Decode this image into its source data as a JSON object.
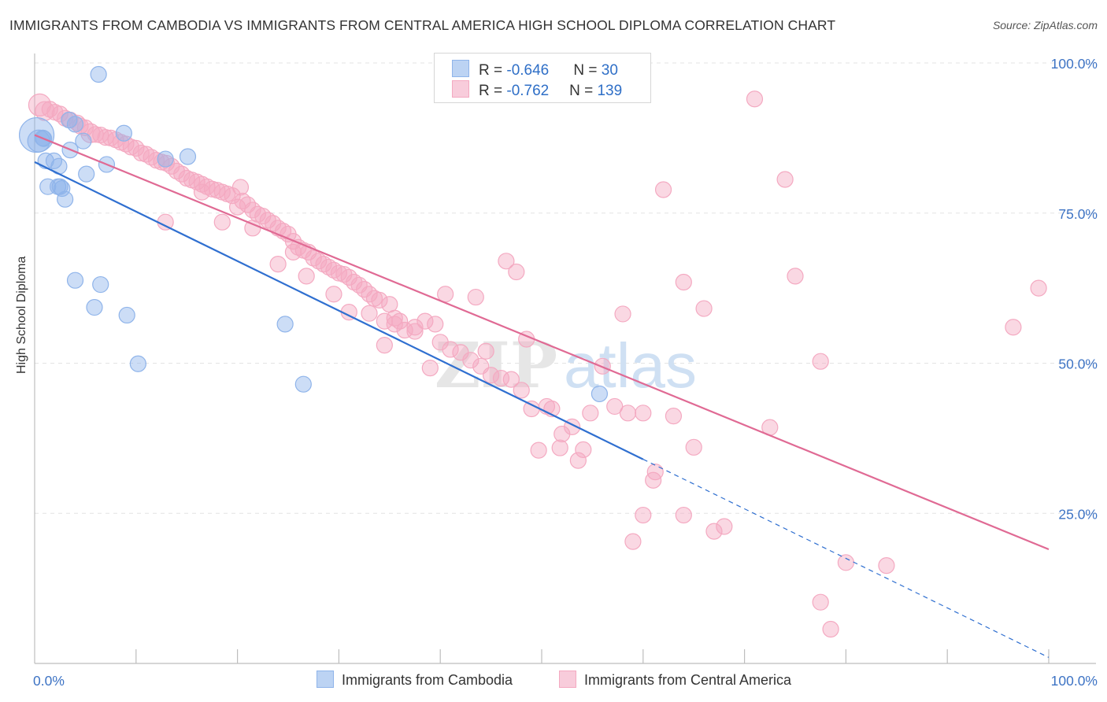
{
  "chart_data": {
    "type": "scatter",
    "title": "IMMIGRANTS FROM CAMBODIA VS IMMIGRANTS FROM CENTRAL AMERICA HIGH SCHOOL DIPLOMA CORRELATION CHART",
    "source": "Source: ZipAtlas.com",
    "xlabel": "",
    "ylabel": "High School Diploma",
    "xlim": [
      0,
      100
    ],
    "ylim": [
      0,
      100
    ],
    "x_tick_labels": [
      "0.0%",
      "100.0%"
    ],
    "y_tick_labels": [
      {
        "value": 100,
        "label": "100.0%"
      },
      {
        "value": 75,
        "label": "75.0%"
      },
      {
        "value": 50,
        "label": "50.0%"
      },
      {
        "value": 25,
        "label": "25.0%"
      }
    ],
    "watermark": {
      "zip": "ZIP",
      "atlas": "atlas"
    },
    "series": [
      {
        "name": "Immigrants from Cambodia",
        "color": "#8fb4ea",
        "line_color": "#2f6fd0",
        "r": "-0.646",
        "n": "30",
        "trend": {
          "x0": 0,
          "y0": 83.5,
          "x1": 60,
          "y1": 34,
          "dash_to_x": 100,
          "dash_to_y": 1
        },
        "points": [
          [
            0.2,
            88,
            22
          ],
          [
            0.4,
            87,
            14
          ],
          [
            0.8,
            87.5,
            10
          ],
          [
            1.1,
            83.7,
            10
          ],
          [
            1.9,
            83.7,
            10
          ],
          [
            2.4,
            82.8,
            10
          ],
          [
            3.5,
            85.5,
            10
          ],
          [
            3.4,
            90.5,
            10
          ],
          [
            4,
            89.8,
            10
          ],
          [
            4.8,
            87,
            10
          ],
          [
            1.3,
            79.4,
            10
          ],
          [
            2.3,
            79.4,
            10
          ],
          [
            2.7,
            79.1,
            10
          ],
          [
            3,
            77.3,
            10
          ],
          [
            5.1,
            81.5,
            10
          ],
          [
            7.1,
            83.1,
            10
          ],
          [
            6.3,
            98.1,
            10
          ],
          [
            8.8,
            88.3,
            10
          ],
          [
            12.9,
            84,
            10
          ],
          [
            15.1,
            84.4,
            10
          ],
          [
            4,
            63.8,
            10
          ],
          [
            6.5,
            63.1,
            10
          ],
          [
            5.9,
            59.3,
            10
          ],
          [
            9.1,
            58,
            10
          ],
          [
            10.2,
            49.9,
            10
          ],
          [
            24.7,
            56.5,
            10
          ],
          [
            26.5,
            46.5,
            10
          ],
          [
            55.7,
            44.9,
            10
          ],
          [
            0.9,
            87.4,
            10
          ],
          [
            2.5,
            79.4,
            10
          ]
        ]
      },
      {
        "name": "Immigrants from Central America",
        "color": "#f4a9c1",
        "line_color": "#e06a94",
        "r": "-0.762",
        "n": "139",
        "trend": {
          "x0": 0,
          "y0": 88,
          "x1": 100,
          "y1": 19
        },
        "points": [
          [
            0.5,
            93,
            14
          ],
          [
            1,
            92,
            12
          ],
          [
            1.5,
            92.3,
            10
          ],
          [
            2,
            91.8,
            10
          ],
          [
            2.5,
            91.5,
            10
          ],
          [
            3,
            90.8,
            10
          ],
          [
            3.5,
            90.5,
            10
          ],
          [
            4.2,
            90,
            10
          ],
          [
            4.5,
            89.5,
            10
          ],
          [
            5,
            89.2,
            10
          ],
          [
            5.5,
            88.3,
            12
          ],
          [
            6,
            88.1,
            10
          ],
          [
            6.5,
            88,
            10
          ],
          [
            7,
            87.6,
            10
          ],
          [
            7.5,
            87.5,
            10
          ],
          [
            8,
            87.2,
            10
          ],
          [
            8.5,
            86.8,
            10
          ],
          [
            9,
            86.5,
            10
          ],
          [
            9.5,
            86,
            10
          ],
          [
            10,
            85.8,
            10
          ],
          [
            10.5,
            85,
            10
          ],
          [
            11,
            84.8,
            10
          ],
          [
            11.5,
            84.3,
            10
          ],
          [
            12,
            83.8,
            10
          ],
          [
            12.5,
            83.5,
            10
          ],
          [
            13,
            83.3,
            10
          ],
          [
            13.5,
            82.8,
            10
          ],
          [
            14,
            82,
            10
          ],
          [
            14.5,
            81.5,
            10
          ],
          [
            15,
            80.8,
            10
          ],
          [
            15.5,
            80.5,
            10
          ],
          [
            16,
            80.2,
            10
          ],
          [
            16.5,
            79.8,
            10
          ],
          [
            17,
            79.4,
            10
          ],
          [
            17.5,
            79,
            10
          ],
          [
            18,
            78.8,
            10
          ],
          [
            18.5,
            78.5,
            10
          ],
          [
            19,
            78.2,
            10
          ],
          [
            19.5,
            77.9,
            10
          ],
          [
            20.3,
            79.3,
            10
          ],
          [
            20.5,
            77,
            10
          ],
          [
            21,
            76.4,
            10
          ],
          [
            21.5,
            75.5,
            10
          ],
          [
            22,
            74.8,
            10
          ],
          [
            22.5,
            74.5,
            10
          ],
          [
            23,
            73.8,
            10
          ],
          [
            23.5,
            73.3,
            10
          ],
          [
            24,
            72.5,
            10
          ],
          [
            24.5,
            72,
            10
          ],
          [
            25,
            71.5,
            10
          ],
          [
            25.5,
            70.3,
            10
          ],
          [
            26,
            69.3,
            10
          ],
          [
            26.5,
            68.8,
            10
          ],
          [
            27,
            68.5,
            10
          ],
          [
            27.5,
            67.5,
            10
          ],
          [
            28,
            67,
            10
          ],
          [
            28.5,
            66.5,
            10
          ],
          [
            29,
            66,
            10
          ],
          [
            29.5,
            65.5,
            10
          ],
          [
            30,
            65,
            10
          ],
          [
            30.5,
            64.8,
            10
          ],
          [
            31,
            64.3,
            10
          ],
          [
            31.5,
            63.5,
            10
          ],
          [
            32,
            63,
            10
          ],
          [
            32.5,
            62.3,
            10
          ],
          [
            33,
            61.5,
            10
          ],
          [
            33.5,
            60.8,
            10
          ],
          [
            34,
            60.5,
            10
          ],
          [
            35,
            59.8,
            10
          ],
          [
            12.9,
            73.5,
            10
          ],
          [
            16.5,
            78.5,
            10
          ],
          [
            18.5,
            73.5,
            10
          ],
          [
            20,
            76,
            10
          ],
          [
            21.5,
            72.5,
            10
          ],
          [
            24,
            66.5,
            10
          ],
          [
            25.5,
            68.5,
            10
          ],
          [
            26.8,
            64.5,
            10
          ],
          [
            29.5,
            61.5,
            10
          ],
          [
            31,
            58.5,
            10
          ],
          [
            33,
            58.3,
            10
          ],
          [
            34.5,
            57,
            10
          ],
          [
            35.5,
            56.5,
            10
          ],
          [
            36.5,
            55.5,
            10
          ],
          [
            37.5,
            55.3,
            10
          ],
          [
            38.5,
            57,
            10
          ],
          [
            39.5,
            56.5,
            10
          ],
          [
            40,
            53.5,
            10
          ],
          [
            41,
            52.3,
            10
          ],
          [
            42,
            51.8,
            10
          ],
          [
            43,
            50.5,
            10
          ],
          [
            44,
            49.5,
            10
          ],
          [
            45,
            48,
            10
          ],
          [
            46,
            47.5,
            10
          ],
          [
            47,
            47.3,
            10
          ],
          [
            48,
            45.5,
            10
          ],
          [
            34.5,
            53,
            10
          ],
          [
            35.5,
            57.5,
            10
          ],
          [
            36,
            57,
            10
          ],
          [
            37.5,
            56,
            10
          ],
          [
            39,
            49.2,
            10
          ],
          [
            40.5,
            61.5,
            10
          ],
          [
            43.5,
            61,
            10
          ],
          [
            44.5,
            52,
            10
          ],
          [
            46.5,
            67,
            10
          ],
          [
            47.5,
            65.2,
            10
          ],
          [
            48.5,
            54,
            10
          ],
          [
            49,
            42.4,
            10
          ],
          [
            50.5,
            42.8,
            10
          ],
          [
            51,
            42.4,
            10
          ],
          [
            52,
            38.2,
            10
          ],
          [
            49.7,
            35.5,
            10
          ],
          [
            51.8,
            35.9,
            10
          ],
          [
            53,
            39.4,
            10
          ],
          [
            53.6,
            33.8,
            10
          ],
          [
            54.1,
            35.6,
            10
          ],
          [
            54.8,
            41.7,
            10
          ],
          [
            56,
            49.5,
            10
          ],
          [
            57.2,
            42.8,
            10
          ],
          [
            58,
            58.2,
            10
          ],
          [
            58.5,
            41.7,
            10
          ],
          [
            60,
            41.7,
            10
          ],
          [
            61,
            30.5,
            10
          ],
          [
            62,
            78.9,
            10
          ],
          [
            63,
            41.2,
            10
          ],
          [
            64,
            63.5,
            10
          ],
          [
            65,
            36,
            10
          ],
          [
            66,
            59.1,
            10
          ],
          [
            67,
            22,
            10
          ],
          [
            68,
            22.8,
            10
          ],
          [
            61.2,
            31.9,
            10
          ],
          [
            60,
            24.7,
            10
          ],
          [
            64,
            24.7,
            10
          ],
          [
            59,
            20.3,
            10
          ],
          [
            71,
            94,
            10
          ],
          [
            74,
            80.6,
            10
          ],
          [
            75,
            64.5,
            10
          ],
          [
            77.5,
            50.3,
            10
          ],
          [
            72.5,
            39.3,
            10
          ],
          [
            80,
            16.8,
            10
          ],
          [
            84,
            16.3,
            10
          ],
          [
            77.5,
            10.2,
            10
          ],
          [
            78.5,
            5.7,
            10
          ],
          [
            96.5,
            56,
            10
          ],
          [
            99,
            62.5,
            10
          ]
        ]
      }
    ]
  }
}
